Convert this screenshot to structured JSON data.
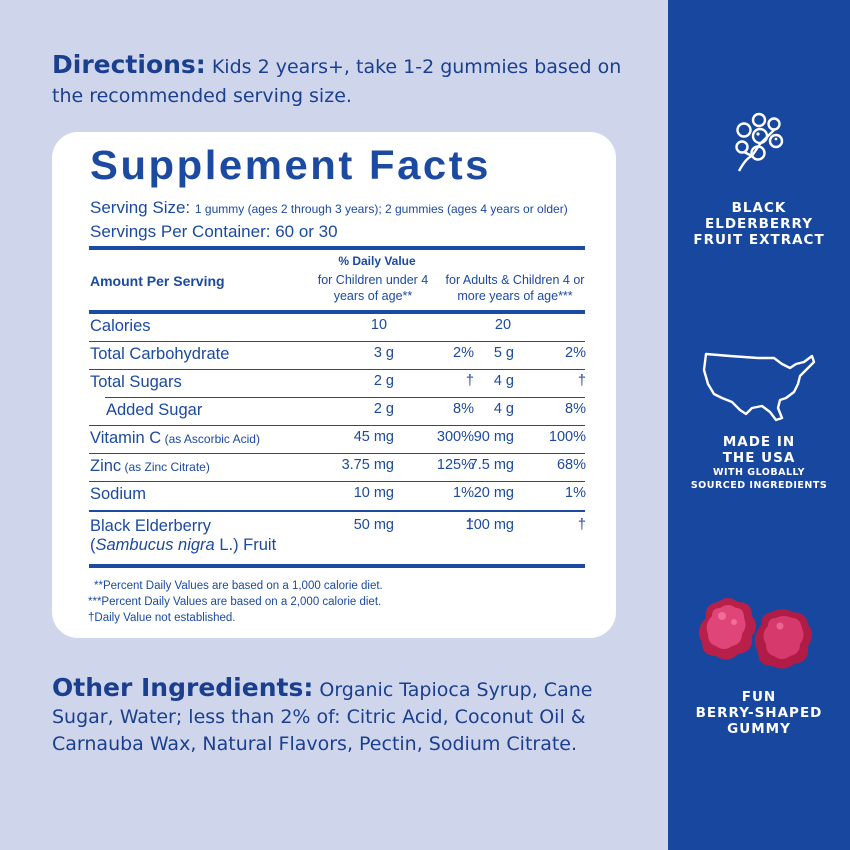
{
  "directions": {
    "lead": "Directions:",
    "text": " Kids 2 years+, take 1-2 gummies based on the recommended serving size."
  },
  "facts": {
    "title": "Supplement Facts",
    "serving_size_label": "Serving Size: ",
    "serving_size_value": "1 gummy (ages 2 through 3 years); 2 gummies (ages 4 years or older)",
    "servings_per_container": "Servings Per Container: 60 or 30",
    "header": {
      "amount": "Amount Per Serving",
      "dv": "% Daily Value",
      "children": "for Children under 4 years of age**",
      "adults": "for Adults & Children 4 or more years of age***"
    },
    "rows": [
      {
        "name": "Calories",
        "note": "",
        "c_amt": "10",
        "c_dv": "",
        "a_amt": "20",
        "a_dv": ""
      },
      {
        "name": "Total Carbohydrate",
        "note": "",
        "c_amt": "3 g",
        "c_dv": "2%",
        "a_amt": "5 g",
        "a_dv": "2%"
      },
      {
        "name": "Total Sugars",
        "note": "",
        "c_amt": "2 g",
        "c_dv": "†",
        "a_amt": "4 g",
        "a_dv": "†"
      },
      {
        "name": "Added Sugar",
        "note": "",
        "c_amt": "2 g",
        "c_dv": "8%",
        "a_amt": "4 g",
        "a_dv": "8%"
      },
      {
        "name": "Vitamin C",
        "note": " (as Ascorbic Acid)",
        "c_amt": "45 mg",
        "c_dv": "300%",
        "a_amt": "90 mg",
        "a_dv": "100%"
      },
      {
        "name": "Zinc",
        "note": " (as Zinc Citrate)",
        "c_amt": "3.75 mg",
        "c_dv": "125%",
        "a_amt": "7.5 mg",
        "a_dv": "68%"
      },
      {
        "name": "Sodium",
        "note": "",
        "c_amt": "10 mg",
        "c_dv": "1%",
        "a_amt": "20 mg",
        "a_dv": "1%"
      }
    ],
    "elderberry": {
      "line1": "Black Elderberry",
      "paren_open": "(",
      "latin": "Sambucus nigra",
      "line2_rest": " L.) Fruit",
      "c_amt": "50 mg",
      "c_dv": "†",
      "a_amt": "100 mg",
      "a_dv": "†"
    },
    "footnotes": [
      "**Percent Daily Values are based on a 1,000 calorie diet.",
      "***Percent Daily Values are based on a 2,000 calorie diet.",
      "†Daily Value not established."
    ]
  },
  "other": {
    "lead": "Other Ingredients:",
    "text": " Organic Tapioca Syrup, Cane Sugar, Water; less than 2% of: Citric Acid, Coconut Oil & Carnauba Wax, Natural Flavors, Pectin, Sodium Citrate."
  },
  "sidebar": {
    "feature1": [
      "BLACK",
      "ELDERBERRY",
      "FRUIT EXTRACT"
    ],
    "feature2": [
      "MADE IN",
      "THE USA"
    ],
    "feature2_sub": [
      "WITH GLOBALLY",
      "SOURCED INGREDIENTS"
    ],
    "feature3": [
      "FUN",
      "BERRY-SHAPED",
      "GUMMY"
    ]
  },
  "colors": {
    "background": "#cfd6ec",
    "brand_blue": "#1847a0",
    "text_blue": "#1b3f8f",
    "gummy": "#c8244f"
  },
  "icons": [
    "elderberry-icon",
    "usa-map-icon",
    "gummy-image"
  ]
}
